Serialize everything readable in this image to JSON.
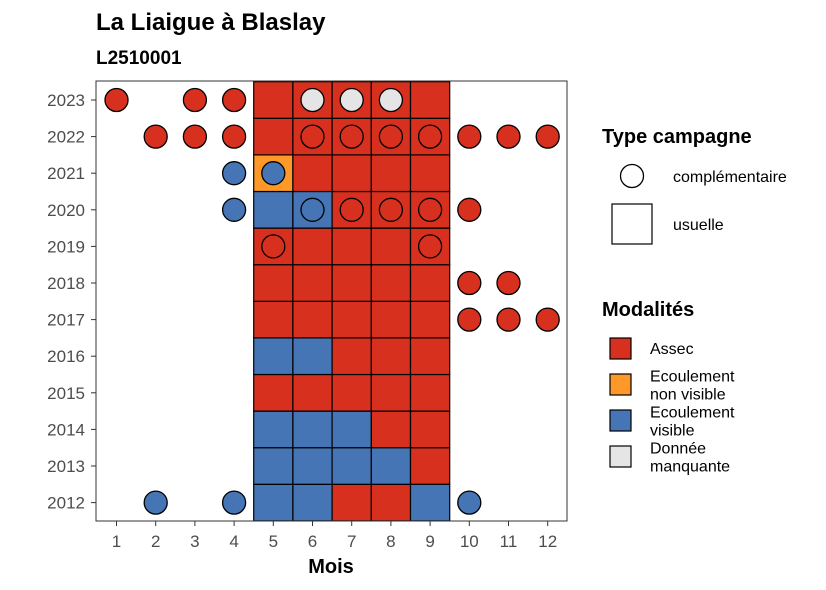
{
  "chart_data": {
    "type": "heatmap",
    "title": "La Liaigue à Blaslay",
    "subtitle": "L2510001",
    "xlabel": "Mois",
    "ylabel": "",
    "x_ticks": [
      1,
      2,
      3,
      4,
      5,
      6,
      7,
      8,
      9,
      10,
      11,
      12
    ],
    "y_ticks": [
      2012,
      2013,
      2014,
      2015,
      2016,
      2017,
      2018,
      2019,
      2020,
      2021,
      2022,
      2023
    ],
    "grid": false,
    "legend_position": "right",
    "colors": {
      "Assec": "#d7301f",
      "Ecoulement non visible": "#fe9929",
      "Ecoulement visible": "#4575b4",
      "Donnée manquante": "#e5e5e5"
    },
    "legend_type": {
      "title": "Type campagne",
      "items": [
        {
          "key": "complementaire",
          "label": "complémentaire",
          "shape": "circle"
        },
        {
          "key": "usuelle",
          "label": "usuelle",
          "shape": "square"
        }
      ]
    },
    "legend_modalites": {
      "title": "Modalités",
      "items": [
        {
          "key": "Assec",
          "lines": [
            "Assec"
          ]
        },
        {
          "key": "Ecoulement non visible",
          "lines": [
            "Ecoulement",
            "non visible"
          ]
        },
        {
          "key": "Ecoulement visible",
          "lines": [
            "Ecoulement",
            "visible"
          ]
        },
        {
          "key": "Donnée manquante",
          "lines": [
            "Donnée",
            "manquante"
          ]
        }
      ]
    },
    "usuelle": [
      {
        "year": 2012,
        "values": [
          "Ecoulement visible",
          "Ecoulement visible",
          "Assec",
          "Assec",
          "Ecoulement visible"
        ]
      },
      {
        "year": 2013,
        "values": [
          "Ecoulement visible",
          "Ecoulement visible",
          "Ecoulement visible",
          "Ecoulement visible",
          "Assec"
        ]
      },
      {
        "year": 2014,
        "values": [
          "Ecoulement visible",
          "Ecoulement visible",
          "Ecoulement visible",
          "Assec",
          "Assec"
        ]
      },
      {
        "year": 2015,
        "values": [
          "Assec",
          "Assec",
          "Assec",
          "Assec",
          "Assec"
        ]
      },
      {
        "year": 2016,
        "values": [
          "Ecoulement visible",
          "Ecoulement visible",
          "Assec",
          "Assec",
          "Assec"
        ]
      },
      {
        "year": 2017,
        "values": [
          "Assec",
          "Assec",
          "Assec",
          "Assec",
          "Assec"
        ]
      },
      {
        "year": 2018,
        "values": [
          "Assec",
          "Assec",
          "Assec",
          "Assec",
          "Assec"
        ]
      },
      {
        "year": 2019,
        "values": [
          "Assec",
          "Assec",
          "Assec",
          "Assec",
          "Assec"
        ]
      },
      {
        "year": 2020,
        "values": [
          "Ecoulement visible",
          "Ecoulement visible",
          "Assec",
          "Assec",
          "Assec"
        ]
      },
      {
        "year": 2021,
        "values": [
          "Ecoulement non visible",
          "Assec",
          "Assec",
          "Assec",
          "Assec"
        ]
      },
      {
        "year": 2022,
        "values": [
          "Assec",
          "Assec",
          "Assec",
          "Assec",
          "Assec"
        ]
      },
      {
        "year": 2023,
        "values": [
          "Assec",
          "Assec",
          "Assec",
          "Assec",
          "Assec"
        ]
      }
    ],
    "usuelle_months": [
      5,
      6,
      7,
      8,
      9
    ],
    "complementaire": [
      {
        "year": 2023,
        "month": 1,
        "value": "Assec"
      },
      {
        "year": 2023,
        "month": 3,
        "value": "Assec"
      },
      {
        "year": 2023,
        "month": 4,
        "value": "Assec"
      },
      {
        "year": 2023,
        "month": 6,
        "value": "Donnée manquante"
      },
      {
        "year": 2023,
        "month": 7,
        "value": "Donnée manquante"
      },
      {
        "year": 2023,
        "month": 8,
        "value": "Donnée manquante"
      },
      {
        "year": 2022,
        "month": 2,
        "value": "Assec"
      },
      {
        "year": 2022,
        "month": 3,
        "value": "Assec"
      },
      {
        "year": 2022,
        "month": 4,
        "value": "Assec"
      },
      {
        "year": 2022,
        "month": 6,
        "value": "Assec"
      },
      {
        "year": 2022,
        "month": 7,
        "value": "Assec"
      },
      {
        "year": 2022,
        "month": 8,
        "value": "Assec"
      },
      {
        "year": 2022,
        "month": 9,
        "value": "Assec"
      },
      {
        "year": 2022,
        "month": 10,
        "value": "Assec"
      },
      {
        "year": 2022,
        "month": 11,
        "value": "Assec"
      },
      {
        "year": 2022,
        "month": 12,
        "value": "Assec"
      },
      {
        "year": 2021,
        "month": 4,
        "value": "Ecoulement visible"
      },
      {
        "year": 2021,
        "month": 5,
        "value": "Ecoulement visible"
      },
      {
        "year": 2020,
        "month": 4,
        "value": "Ecoulement visible"
      },
      {
        "year": 2020,
        "month": 6,
        "value": "Ecoulement visible"
      },
      {
        "year": 2020,
        "month": 7,
        "value": "Assec"
      },
      {
        "year": 2020,
        "month": 8,
        "value": "Assec"
      },
      {
        "year": 2020,
        "month": 9,
        "value": "Assec"
      },
      {
        "year": 2020,
        "month": 10,
        "value": "Assec"
      },
      {
        "year": 2019,
        "month": 5,
        "value": "Assec"
      },
      {
        "year": 2019,
        "month": 9,
        "value": "Assec"
      },
      {
        "year": 2018,
        "month": 10,
        "value": "Assec"
      },
      {
        "year": 2018,
        "month": 11,
        "value": "Assec"
      },
      {
        "year": 2017,
        "month": 10,
        "value": "Assec"
      },
      {
        "year": 2017,
        "month": 11,
        "value": "Assec"
      },
      {
        "year": 2017,
        "month": 12,
        "value": "Assec"
      },
      {
        "year": 2012,
        "month": 2,
        "value": "Ecoulement visible"
      },
      {
        "year": 2012,
        "month": 4,
        "value": "Ecoulement visible"
      },
      {
        "year": 2012,
        "month": 10,
        "value": "Ecoulement visible"
      }
    ]
  }
}
